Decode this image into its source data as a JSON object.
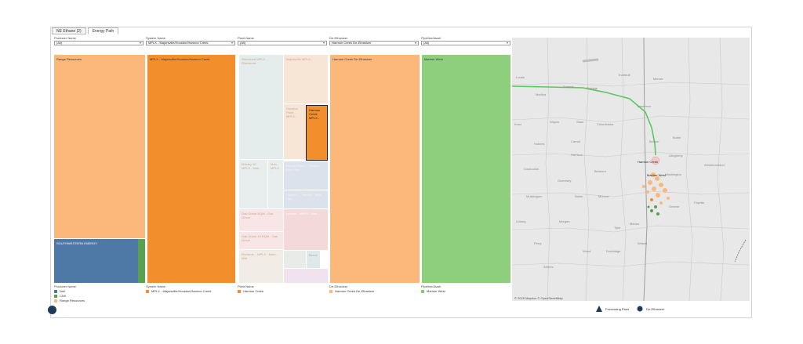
{
  "tabs": [
    "NE Ethane (2)",
    "Energy Path"
  ],
  "filters": [
    {
      "label": "Producer Name",
      "value": "(All)"
    },
    {
      "label": "System Name",
      "value": "MPLX - Majorsville/Houston/Harmon Creek"
    },
    {
      "label": "Plant Name",
      "value": "(All)"
    },
    {
      "label": "De-Ethanizer",
      "value": "Harmon Creek De-Ethanizer"
    },
    {
      "label": "Pipeline/Asset",
      "value": "(All)"
    }
  ],
  "treemaps": {
    "producer": {
      "a": "Range Resources",
      "b": "SOUTHWESTERN ENERGY"
    },
    "system": {
      "a": "MPLX - Majorsville/Houston/Harmon Creek"
    },
    "plant": {
      "p1": "Sherwood MPLX - Sherwood",
      "p2": "Majorsville MPLX -",
      "p3": "Houston Plant ... MPLX -",
      "p4": "Harmon Creek MPLX -",
      "p5": "Mobley 10 MPLX - Mob...",
      "p6": "Mob... MPLX -",
      "p7": "Bobcat Plant ... Trenton - Blue Rac...",
      "p8": "Natrium ... Trenton - Blue Rac...",
      "p9": "Oak Grove EQM - Oak Grove",
      "p10": "Leviath... MPLX - Oak...",
      "p11": "Oak Grove 10 EQM - Oak Grove",
      "p12": "Richards... MPLX - Mobl... Wirt",
      "p13": "...",
      "p14": "Berne ...",
      "p15": "..."
    },
    "deethanizer": {
      "a": "Harmon Creek De-Ethanizer"
    },
    "pipeline": {
      "a": "Mariner West"
    }
  },
  "legends": [
    {
      "title": "Producer Name",
      "items": [
        {
          "label": "Null",
          "color": "#4e79a7"
        },
        {
          "label": "CNX",
          "color": "#59a14f"
        },
        {
          "label": "Range Resources",
          "color": "#fbb87a"
        }
      ]
    },
    {
      "title": "System Name",
      "items": [
        {
          "label": "MPLX - Majorsville/Houston/Harmon Creek",
          "color": "#f28e2b"
        }
      ]
    },
    {
      "title": "Plant Name",
      "items": [
        {
          "label": "Harmon Creek",
          "color": "#f28e2b"
        }
      ]
    },
    {
      "title": "De-Ethanizer",
      "items": [
        {
          "label": "Harmon Creek De-Ethanizer",
          "color": "#fbb87a"
        }
      ]
    },
    {
      "title": "Pipeline/Asset",
      "items": [
        {
          "label": "Mariner West",
          "color": "#7fcf6f"
        }
      ]
    }
  ],
  "map": {
    "attribution": "© 2025 Mapbox © OpenStreetMap",
    "labels": {
      "l1": "Harmon Creek",
      "l2": "Mariner West",
      "c1": "Wayne",
      "c2": "Stark",
      "c3": "Columbiana",
      "c4": "Holmes",
      "c5": "Carroll",
      "c6": "Coshocton",
      "c7": "Harrison",
      "c8": "Guernsey",
      "c9": "Belmont",
      "c10": "Washington",
      "c11": "Greene",
      "c12": "Fayette",
      "c13": "Monroe",
      "c14": "Marion",
      "c15": "Noble",
      "c16": "Allegheny",
      "c17": "Butler",
      "c18": "Beaver",
      "c19": "Lawrence",
      "c20": "Mercer",
      "c21": "Westmoreland",
      "c22": "Tyler",
      "c23": "Wetzel",
      "c24": "Doddridge",
      "c25": "Muskingum",
      "c26": "Lorain",
      "c27": "Medina",
      "c28": "Summit",
      "c29": "Portage",
      "c30": "Trumbull",
      "c31": "Knox",
      "c32": "Licking",
      "c33": "Perry",
      "c34": "Morgan",
      "c35": "Athens",
      "c36": "Wood"
    }
  },
  "map_legend": {
    "processing": "Processing Plant",
    "deethanizer": "De-Ethanizer"
  },
  "colors": {
    "orange": "#f28e2b",
    "light_orange": "#fbb87a",
    "blue": "#4e79a7",
    "green": "#59a14f",
    "light_green": "#7fcf6f",
    "pipeline": "#5cc85c"
  }
}
